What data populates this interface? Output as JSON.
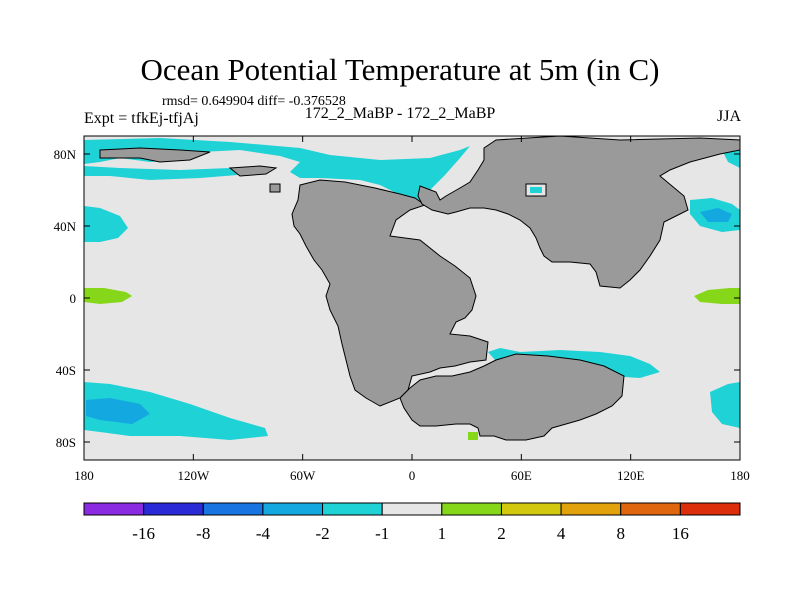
{
  "chart_data": {
    "type": "heatmap",
    "title": "Ocean Potential Temperature at 5m (in C)",
    "stats": "rmsd= 0.649904  diff= -0.376528",
    "left_label": "Expt = tfkEj-tfjAj",
    "center_label": "172_2_MaBP - 172_2_MaBP",
    "right_label": "JJA",
    "xlim": [
      -180,
      180
    ],
    "ylim": [
      -90,
      90
    ],
    "x_ticks": [
      {
        "value": -180,
        "label": "180"
      },
      {
        "value": -120,
        "label": "120W"
      },
      {
        "value": -60,
        "label": "60W"
      },
      {
        "value": 0,
        "label": "0"
      },
      {
        "value": 60,
        "label": "60E"
      },
      {
        "value": 120,
        "label": "120E"
      },
      {
        "value": 180,
        "label": "180"
      }
    ],
    "y_ticks": [
      {
        "value": 80,
        "label": "80N"
      },
      {
        "value": 40,
        "label": "40N"
      },
      {
        "value": 0,
        "label": "0"
      },
      {
        "value": -40,
        "label": "40S"
      },
      {
        "value": -80,
        "label": "80S"
      }
    ],
    "colorbar": {
      "labels": [
        "-16",
        "-8",
        "-4",
        "-2",
        "-1",
        "1",
        "2",
        "4",
        "8",
        "16"
      ],
      "colors": [
        "#8a2be2",
        "#2a2ad6",
        "#1874e0",
        "#14a8e0",
        "#1ed2d6",
        "#e6e6e6",
        "#86d61a",
        "#d2c80e",
        "#e2a20c",
        "#e0660e",
        "#dc2e0a"
      ]
    },
    "land_color": "#9a9a9a",
    "background_color": "#e6e6e6"
  }
}
